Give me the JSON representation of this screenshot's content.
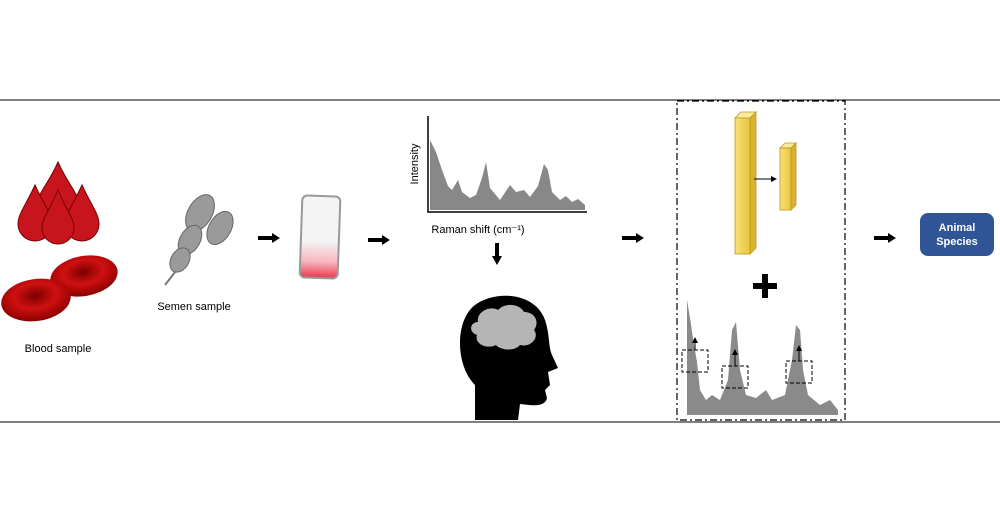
{
  "steps": {
    "blood": {
      "label": "Blood sample"
    },
    "semen": {
      "label": "Semen sample"
    }
  },
  "spectrum": {
    "y_label": "Intensity",
    "x_label": "Raman shift (cm⁻¹)"
  },
  "output": {
    "lines": [
      "Animal",
      "Species"
    ]
  }
}
